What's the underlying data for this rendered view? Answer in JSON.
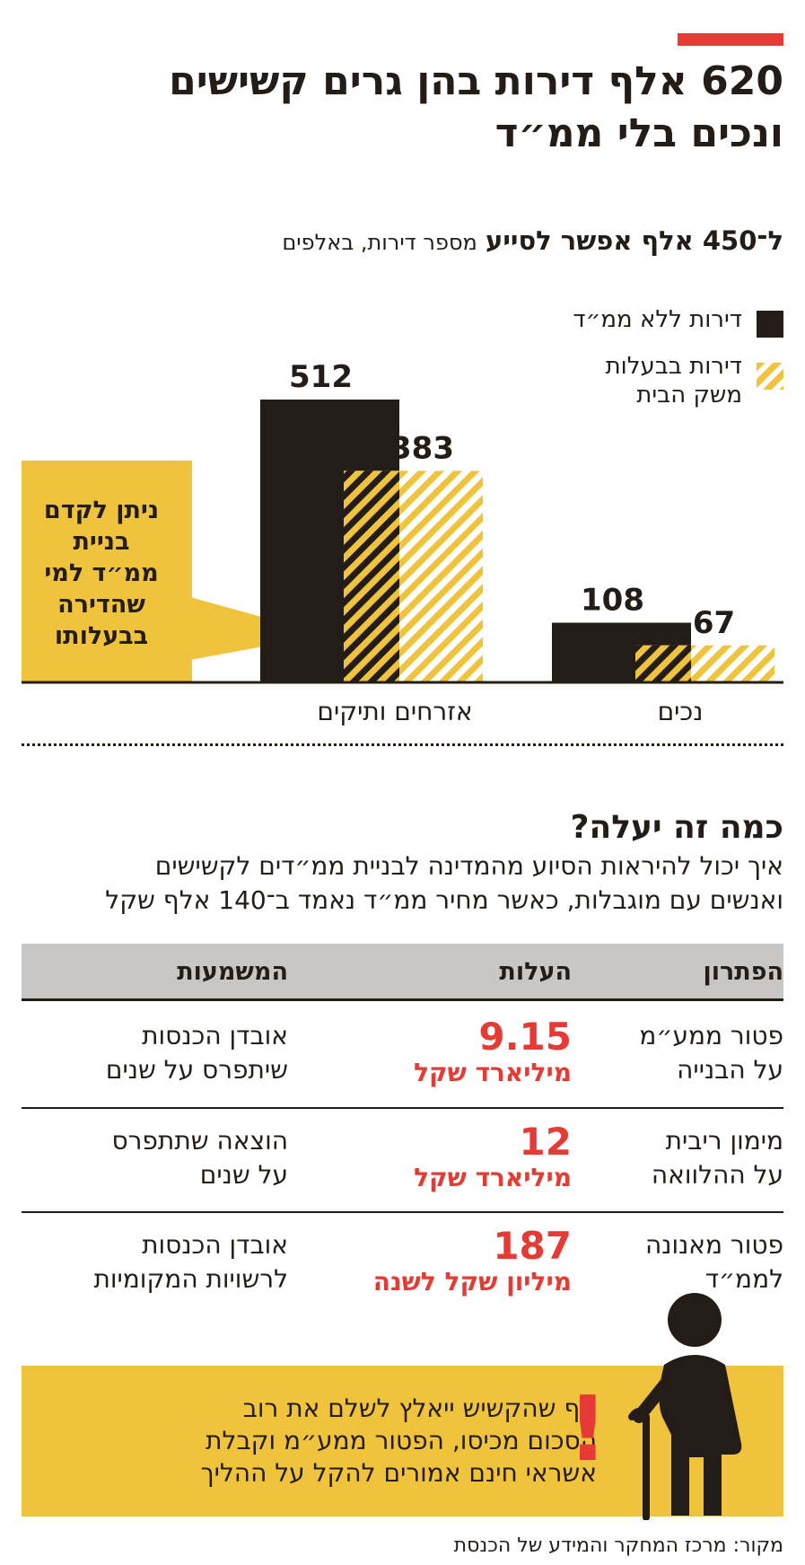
{
  "header": {
    "title_line1": "620 אלף דירות בהן גרים קשישים",
    "title_line2": "ונכים בלי ממ״ד"
  },
  "chart_data": {
    "type": "bar",
    "title": "ל־450 אלף אפשר לסייע",
    "subtitle": "מספר דירות, באלפים",
    "categories": [
      "אזרחים ותיקים",
      "נכים"
    ],
    "series": [
      {
        "name": "דירות ללא ממ״ד",
        "values": [
          512,
          108
        ],
        "color": "#241c16",
        "pattern": "solid"
      },
      {
        "name": "דירות בבעלות משק הבית",
        "values": [
          383,
          67
        ],
        "color": "#f0c33d",
        "pattern": "hatched"
      }
    ],
    "ylim": [
      0,
      512
    ],
    "legend_position": "top-right",
    "legend_labels": [
      "דירות ללא ממ״ד",
      "דירות בבעלות",
      "משק הבית"
    ],
    "callout_lines": [
      "ניתן לקדם",
      "בניית",
      "ממ״ד למי",
      "שהדירה",
      "בבעלותו"
    ]
  },
  "section": {
    "title": "כמה זה יעלה?",
    "sub_line1": "איך יכול להיראות הסיוע מהמדינה לבניית ממ״דים לקשישים",
    "sub_line2": "ואנשים עם מוגבלות, כאשר מחיר ממ״ד נאמד ב־140 אלף שקל"
  },
  "table": {
    "headers": [
      "הפתרון",
      "העלות",
      "המשמעות"
    ],
    "rows": [
      {
        "solution": [
          "פטור ממע״מ",
          "על הבנייה"
        ],
        "cost_value": "9.15",
        "cost_unit": "מיליארד שקל",
        "meaning": [
          "אובדן הכנסות",
          "שיתפרס על שנים"
        ]
      },
      {
        "solution": [
          "מימון ריבית",
          "על ההלוואה"
        ],
        "cost_value": "12",
        "cost_unit": "מיליארד שקל",
        "meaning": [
          "הוצאה שתתפרס",
          "על שנים"
        ]
      },
      {
        "solution": [
          "פטור מאנונה",
          "לממ״ד"
        ],
        "cost_value": "187",
        "cost_unit": "מיליון שקל לשנה",
        "meaning": [
          "אובדן הכנסות",
          "לרשויות המקומיות"
        ]
      }
    ]
  },
  "note": {
    "line1": "אף שהקשיש ייאלץ לשלם את רוב",
    "line2": "הסכום מכיסו, הפטור ממע״מ וקבלת",
    "line3": "אשראי חינם אמורים להקל על ההליך",
    "exclamation": "!",
    "icon": "elderly-person-icon"
  },
  "source": "מקור: מרכז המחקר והמידע של הכנסת",
  "colors": {
    "accent": "#e63b35",
    "yellow": "#f0c33d",
    "dark": "#241c16",
    "gray": "#c9c7c5"
  }
}
